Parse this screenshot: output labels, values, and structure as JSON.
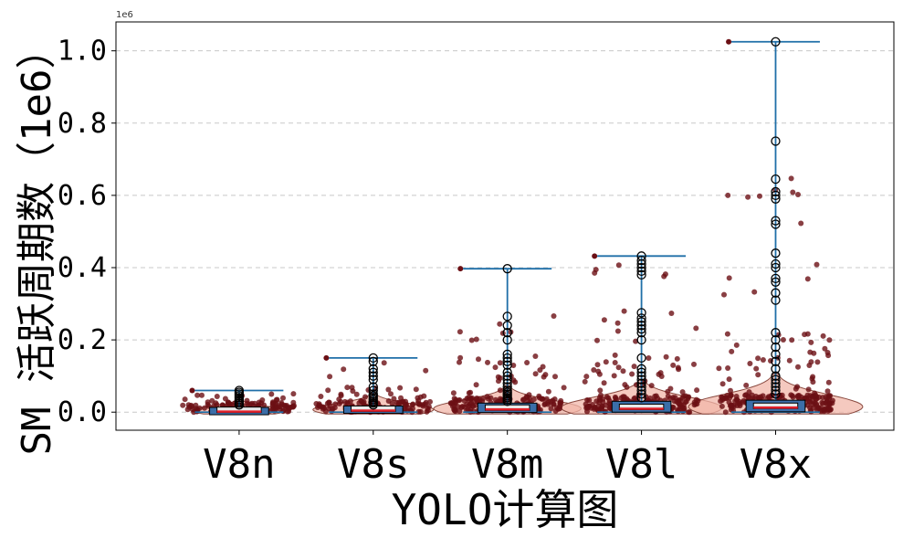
{
  "chart_data": {
    "type": "box",
    "xlabel": "YOLO计算图",
    "ylabel": "SM 活跃周期数（1e6）",
    "y_offset_label": "1e6",
    "ylim": [
      -0.05,
      1.08
    ],
    "yticks": [
      0.0,
      0.2,
      0.4,
      0.6,
      0.8,
      1.0
    ],
    "ytick_labels": [
      "0.0",
      "0.2",
      "0.4",
      "0.6",
      "0.8",
      "1.0"
    ],
    "grid": "y-dashed",
    "categories": [
      "V8n",
      "V8s",
      "V8m",
      "V8l",
      "V8x"
    ],
    "boxes": [
      {
        "name": "V8n",
        "whisker_low": 0.0,
        "q1": 0.002,
        "median": 0.004,
        "q3": 0.008,
        "whisker_high": 0.06,
        "outliers": [
          0.02,
          0.025,
          0.03,
          0.035,
          0.04,
          0.045,
          0.05,
          0.055
        ]
      },
      {
        "name": "V8s",
        "whisker_low": 0.0,
        "q1": 0.003,
        "median": 0.007,
        "q3": 0.012,
        "whisker_high": 0.15,
        "outliers": [
          0.02,
          0.025,
          0.03,
          0.035,
          0.04,
          0.045,
          0.05,
          0.06,
          0.07,
          0.09,
          0.1,
          0.11,
          0.12,
          0.14
        ]
      },
      {
        "name": "V8m",
        "whisker_low": 0.0,
        "q1": 0.004,
        "median": 0.01,
        "q3": 0.02,
        "whisker_high": 0.397,
        "outliers": [
          0.03,
          0.035,
          0.04,
          0.045,
          0.05,
          0.055,
          0.06,
          0.07,
          0.08,
          0.09,
          0.1,
          0.11,
          0.13,
          0.14,
          0.15,
          0.16,
          0.2,
          0.22,
          0.24,
          0.265
        ]
      },
      {
        "name": "V8l",
        "whisker_low": 0.0,
        "q1": 0.005,
        "median": 0.012,
        "q3": 0.025,
        "whisker_high": 0.432,
        "outliers": [
          0.04,
          0.05,
          0.06,
          0.07,
          0.08,
          0.09,
          0.1,
          0.11,
          0.12,
          0.15,
          0.2,
          0.22,
          0.23,
          0.24,
          0.25,
          0.26,
          0.275,
          0.38,
          0.39,
          0.4,
          0.41,
          0.42
        ]
      },
      {
        "name": "V8x",
        "whisker_low": 0.0,
        "q1": 0.006,
        "median": 0.015,
        "q3": 0.028,
        "whisker_high": 1.025,
        "outliers": [
          0.05,
          0.06,
          0.07,
          0.08,
          0.09,
          0.1,
          0.12,
          0.14,
          0.16,
          0.18,
          0.2,
          0.22,
          0.31,
          0.33,
          0.36,
          0.37,
          0.4,
          0.41,
          0.44,
          0.52,
          0.53,
          0.59,
          0.6,
          0.61,
          0.645,
          0.75
        ]
      }
    ],
    "violin_max_density_halfwidth": [
      0.35,
      0.45,
      0.55,
      0.6,
      0.65
    ],
    "colors": {
      "scatter": "#6b0f14",
      "violin_fill": "#f2b7aa",
      "violin_edge": "#8a4a40",
      "box_fill": "#3b6ea8",
      "median_light": "#e8e8e8",
      "median_red": "#e0202a",
      "whisker": "#1f6fa8",
      "grid": "#c8c8c8"
    }
  }
}
